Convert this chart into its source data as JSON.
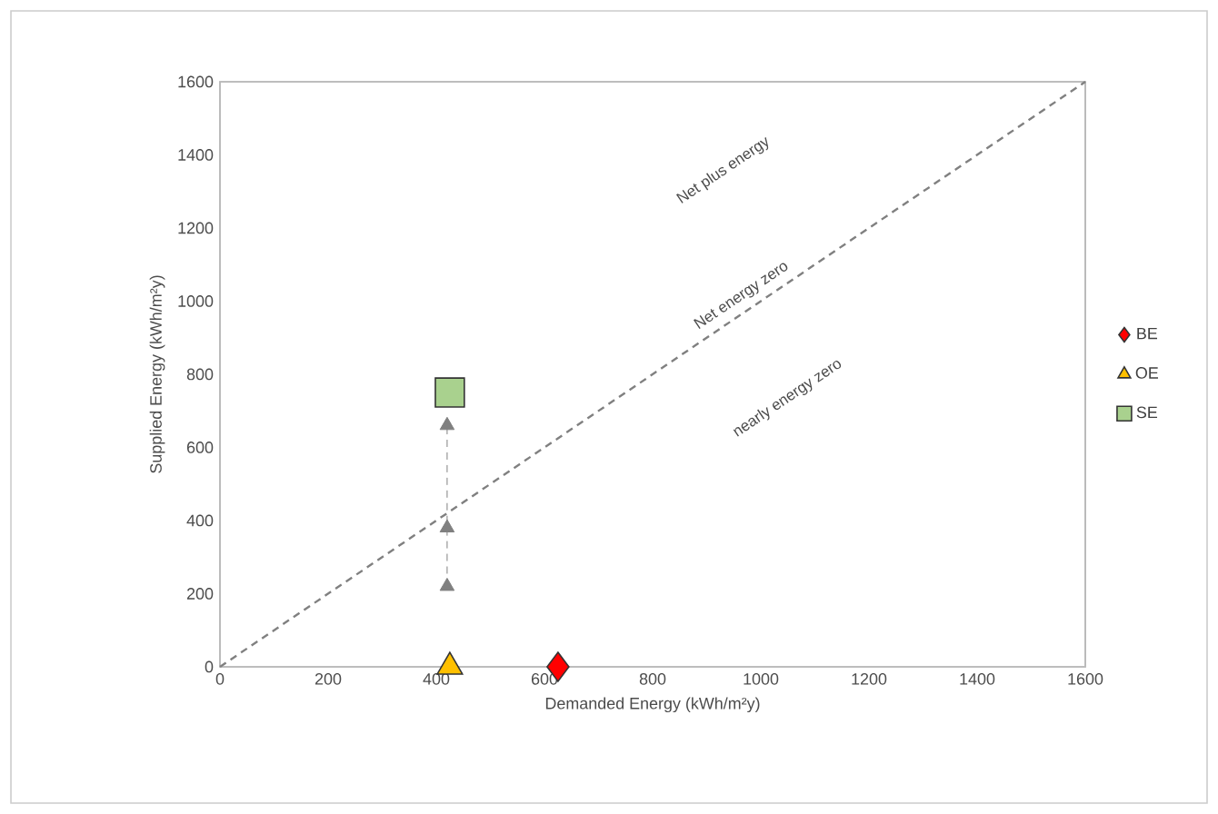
{
  "chart_data": {
    "type": "scatter",
    "xlabel": "Demanded Energy (kWh/m²y)",
    "ylabel": "Supplied Energy (kWh/m²y)",
    "xlim": [
      0,
      1600
    ],
    "ylim": [
      0,
      1600
    ],
    "xticks": [
      0,
      200,
      400,
      600,
      800,
      1000,
      1200,
      1400,
      1600
    ],
    "yticks": [
      0,
      200,
      400,
      600,
      800,
      1000,
      1200,
      1400,
      1600
    ],
    "legend": "right",
    "series": [
      {
        "type": "line",
        "color": "#808080",
        "marker": "none",
        "line_style": "dashed",
        "x": [
          0,
          1600
        ],
        "values": [
          0,
          1600
        ]
      },
      {
        "type": "line",
        "color": "#808080",
        "marker": "triangle",
        "line_style": "dashed",
        "x": [
          420,
          420,
          420
        ],
        "values": [
          220,
          380,
          660
        ]
      },
      {
        "name": "BE",
        "color": "#ff0000",
        "marker": "diamond",
        "x": [
          625
        ],
        "values": [
          0
        ]
      },
      {
        "name": "OE",
        "color": "#ffc000",
        "marker": "triangle",
        "x": [
          425
        ],
        "values": [
          0
        ]
      },
      {
        "name": "SE",
        "color": "#a9d18e",
        "marker": "square",
        "x": [
          425
        ],
        "values": [
          750
        ]
      }
    ],
    "annotations": [
      "Net plus energy",
      "Net energy zero",
      "nearly energy zero"
    ]
  }
}
